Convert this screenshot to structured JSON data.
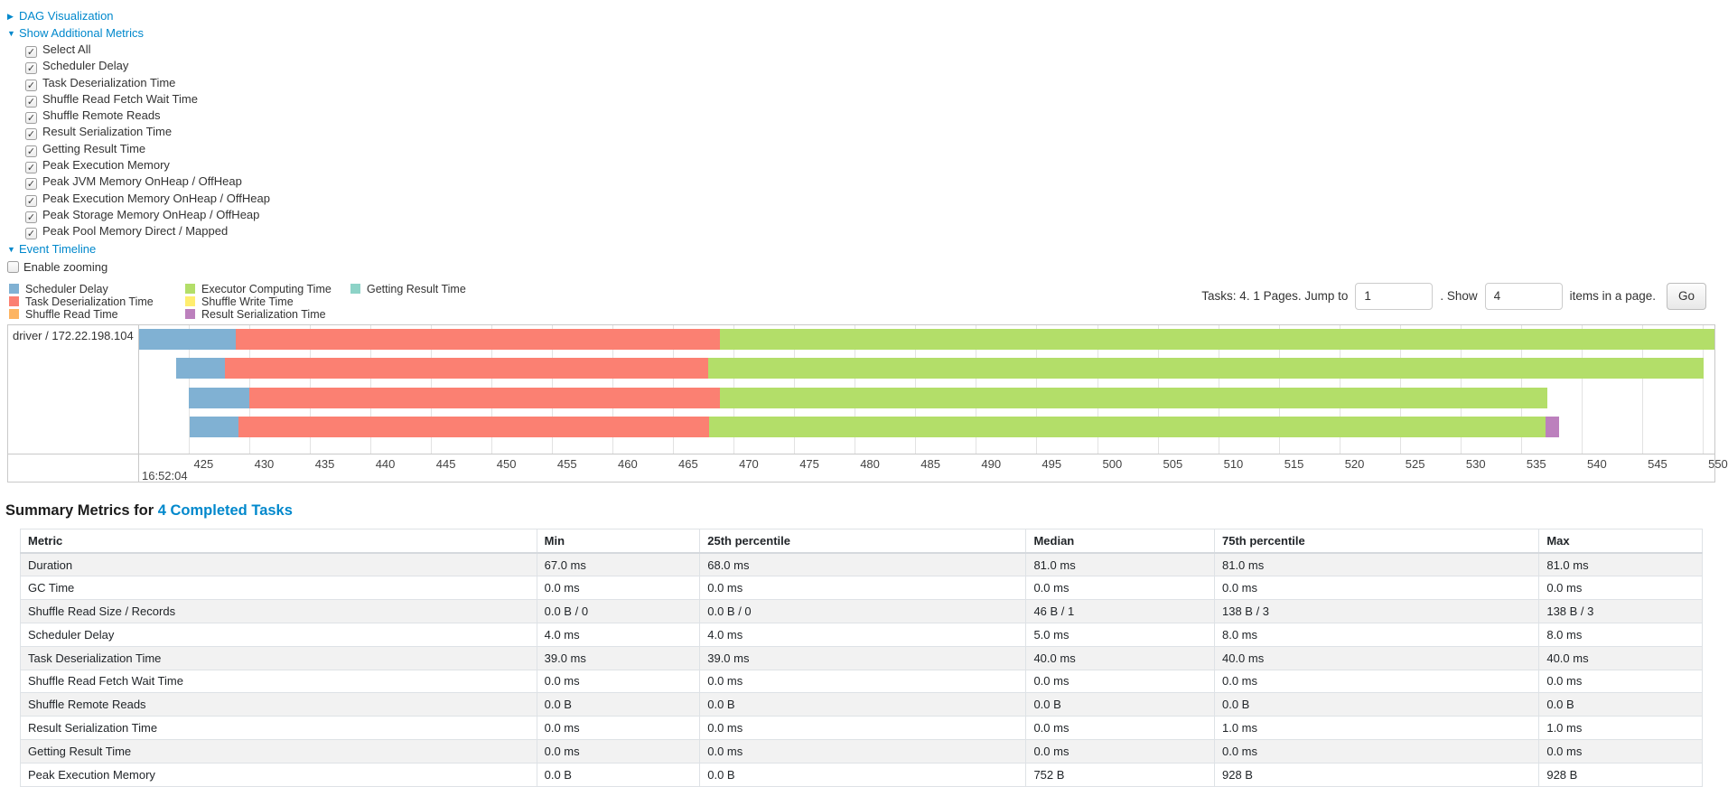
{
  "colors": {
    "link": "#0088cc",
    "scheduler_delay": "#80B1D3",
    "task_deserialization": "#FB8072",
    "shuffle_read": "#FDB462",
    "executor_computing": "#B3DE69",
    "shuffle_write": "#FFED6F",
    "result_serialization": "#BC80BD",
    "getting_result": "#8DD3C7"
  },
  "dag": {
    "label": "DAG Visualization"
  },
  "additional_metrics": {
    "label": "Show Additional Metrics",
    "options": [
      {
        "label": "Select All",
        "checked": true
      },
      {
        "label": "Scheduler Delay",
        "checked": true
      },
      {
        "label": "Task Deserialization Time",
        "checked": true
      },
      {
        "label": "Shuffle Read Fetch Wait Time",
        "checked": true
      },
      {
        "label": "Shuffle Remote Reads",
        "checked": true
      },
      {
        "label": "Result Serialization Time",
        "checked": true
      },
      {
        "label": "Getting Result Time",
        "checked": true
      },
      {
        "label": "Peak Execution Memory",
        "checked": true
      },
      {
        "label": "Peak JVM Memory OnHeap / OffHeap",
        "checked": true
      },
      {
        "label": "Peak Execution Memory OnHeap / OffHeap",
        "checked": true
      },
      {
        "label": "Peak Storage Memory OnHeap / OffHeap",
        "checked": true
      },
      {
        "label": "Peak Pool Memory Direct / Mapped",
        "checked": true
      }
    ]
  },
  "event_timeline": {
    "label": "Event Timeline",
    "enable_zooming": "Enable zooming",
    "enable_zooming_checked": false
  },
  "pagination": {
    "tasks_text": "Tasks: 4. 1 Pages. Jump to",
    "jump_value": "1",
    "show_text": ". Show",
    "show_value": "4",
    "items_text": "items in a page.",
    "go_label": "Go"
  },
  "chart_data": {
    "type": "timeline-gantt",
    "group_label": "driver / 172.22.198.104",
    "time_label": "16:52:04",
    "axis": {
      "min": 420.86,
      "max": 550.96,
      "tick_start": 425,
      "tick_end": 550,
      "tick_step": 5,
      "unit": "ms within 16:52:04"
    },
    "legend_columns": [
      [
        {
          "label": "Scheduler Delay",
          "type": "scheduler_delay"
        },
        {
          "label": "Task Deserialization Time",
          "type": "task_deserialization"
        },
        {
          "label": "Shuffle Read Time",
          "type": "shuffle_read"
        }
      ],
      [
        {
          "label": "Executor Computing Time",
          "type": "executor_computing"
        },
        {
          "label": "Shuffle Write Time",
          "type": "shuffle_write"
        },
        {
          "label": "Result Serialization Time",
          "type": "result_serialization"
        }
      ],
      [
        {
          "label": "Getting Result Time",
          "type": "getting_result"
        }
      ]
    ],
    "tasks": [
      {
        "segments": [
          {
            "type": "scheduler_delay",
            "start": 420.86,
            "end": 428.9
          },
          {
            "type": "task_deserialization",
            "start": 428.9,
            "end": 468.9
          },
          {
            "type": "executor_computing",
            "start": 468.9,
            "end": 551.0
          }
        ]
      },
      {
        "segments": [
          {
            "type": "scheduler_delay",
            "start": 424.0,
            "end": 428.0
          },
          {
            "type": "task_deserialization",
            "start": 428.0,
            "end": 467.9
          },
          {
            "type": "executor_computing",
            "start": 467.9,
            "end": 550.1
          }
        ]
      },
      {
        "segments": [
          {
            "type": "scheduler_delay",
            "start": 425.0,
            "end": 430.0
          },
          {
            "type": "task_deserialization",
            "start": 430.0,
            "end": 468.9
          },
          {
            "type": "executor_computing",
            "start": 468.9,
            "end": 537.2
          }
        ]
      },
      {
        "segments": [
          {
            "type": "scheduler_delay",
            "start": 425.1,
            "end": 429.1
          },
          {
            "type": "task_deserialization",
            "start": 429.1,
            "end": 468.0
          },
          {
            "type": "executor_computing",
            "start": 468.0,
            "end": 537.0
          },
          {
            "type": "result_serialization",
            "start": 537.0,
            "end": 538.1
          }
        ]
      }
    ]
  },
  "summary_table": {
    "heading": "Summary Metrics for",
    "link": "4 Completed Tasks",
    "columns": [
      "Metric",
      "Min",
      "25th percentile",
      "Median",
      "75th percentile",
      "Max"
    ],
    "rows": [
      [
        "Duration",
        "67.0 ms",
        "68.0 ms",
        "81.0 ms",
        "81.0 ms",
        "81.0 ms"
      ],
      [
        "GC Time",
        "0.0 ms",
        "0.0 ms",
        "0.0 ms",
        "0.0 ms",
        "0.0 ms"
      ],
      [
        "Shuffle Read Size / Records",
        "0.0 B / 0",
        "0.0 B / 0",
        "46 B / 1",
        "138 B / 3",
        "138 B / 3"
      ],
      [
        "Scheduler Delay",
        "4.0 ms",
        "4.0 ms",
        "5.0 ms",
        "8.0 ms",
        "8.0 ms"
      ],
      [
        "Task Deserialization Time",
        "39.0 ms",
        "39.0 ms",
        "40.0 ms",
        "40.0 ms",
        "40.0 ms"
      ],
      [
        "Shuffle Read Fetch Wait Time",
        "0.0 ms",
        "0.0 ms",
        "0.0 ms",
        "0.0 ms",
        "0.0 ms"
      ],
      [
        "Shuffle Remote Reads",
        "0.0 B",
        "0.0 B",
        "0.0 B",
        "0.0 B",
        "0.0 B"
      ],
      [
        "Result Serialization Time",
        "0.0 ms",
        "0.0 ms",
        "0.0 ms",
        "1.0 ms",
        "1.0 ms"
      ],
      [
        "Getting Result Time",
        "0.0 ms",
        "0.0 ms",
        "0.0 ms",
        "0.0 ms",
        "0.0 ms"
      ],
      [
        "Peak Execution Memory",
        "0.0 B",
        "0.0 B",
        "752 B",
        "928 B",
        "928 B"
      ]
    ]
  }
}
